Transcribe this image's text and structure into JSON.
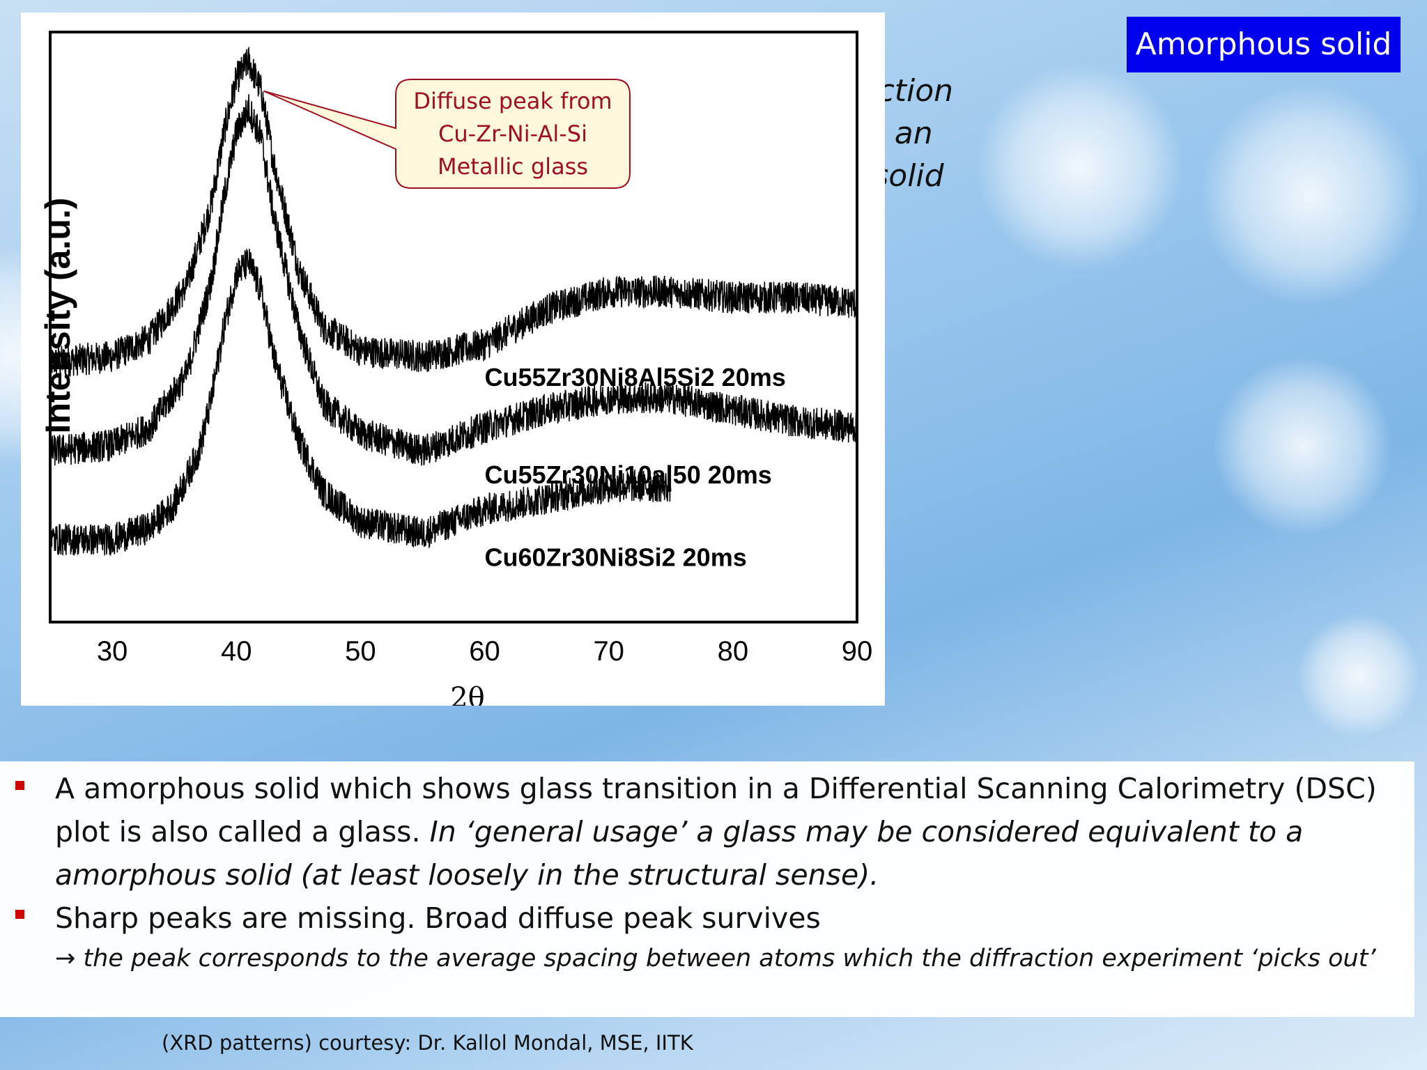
{
  "slide": {
    "title": "Amorphous solid",
    "caption_lines": [
      "Actual diffraction",
      "pattern from an",
      "amorphous solid"
    ],
    "bullets": [
      {
        "text": "A amorphous solid which shows glass transition in a Differential Scanning Calorimetry (DSC) plot is also called a glass. ",
        "italic_text": "In ‘general usage’ a glass may be considered equivalent to a amorphous solid (at least loosely in the structural sense)."
      },
      {
        "text": "Sharp peaks are missing. Broad diffuse peak survives",
        "sub_text": "→ the peak corresponds to the average spacing between atoms which the diffraction experiment ‘picks out’"
      }
    ],
    "credit": "(XRD patterns) courtesy: Dr. Kallol Mondal, MSE, IITK",
    "colors": {
      "title_bg": "#0000ee",
      "bullet": "#d00000",
      "callout_text": "#a01020",
      "callout_fill": "#fff8dc"
    }
  },
  "chart_data": {
    "type": "line",
    "xlabel": "2θ",
    "ylabel": "Intensity (a.u.)",
    "xlim": [
      25,
      90
    ],
    "ylim": [
      0,
      10
    ],
    "xticks": [
      30,
      40,
      50,
      60,
      70,
      80,
      90
    ],
    "grid": false,
    "callout": "Diffuse peak from Cu-Zr-Ni-Al-Si Metallic glass",
    "callout_lines": [
      "Diffuse peak from",
      "Cu-Zr-Ni-Al-Si",
      "Metallic glass"
    ],
    "series": [
      {
        "name": "Cu55Zr30Ni8Al5Si2 20ms",
        "x": [
          25,
          30,
          33,
          36,
          38,
          39,
          40,
          41,
          42,
          43,
          45,
          47,
          50,
          55,
          60,
          65,
          70,
          75,
          80,
          85,
          90
        ],
        "y": [
          4.4,
          4.5,
          4.8,
          5.7,
          7.1,
          8.3,
          9.2,
          9.5,
          9.0,
          7.8,
          6.0,
          5.0,
          4.6,
          4.5,
          4.7,
          5.3,
          5.6,
          5.6,
          5.5,
          5.5,
          5.4
        ]
      },
      {
        "name": "Cu55Zr30Ni10al50 20ms",
        "x": [
          25,
          30,
          33,
          36,
          38,
          39,
          40,
          41,
          42,
          43,
          45,
          47,
          50,
          55,
          60,
          65,
          70,
          75,
          80,
          85,
          90
        ],
        "y": [
          2.9,
          3.0,
          3.3,
          4.2,
          5.8,
          7.2,
          8.3,
          8.7,
          8.2,
          6.9,
          5.0,
          3.7,
          3.2,
          2.9,
          3.3,
          3.6,
          3.8,
          3.8,
          3.6,
          3.4,
          3.3
        ]
      },
      {
        "name": "Cu60Zr30Ni8Si2 20ms",
        "x": [
          25,
          30,
          33,
          35,
          37,
          38,
          39,
          40,
          41,
          42,
          43,
          45,
          47,
          50,
          55,
          60,
          65,
          70,
          75
        ],
        "y": [
          1.4,
          1.4,
          1.6,
          2.0,
          2.9,
          3.8,
          5.0,
          5.9,
          6.1,
          5.6,
          4.5,
          3.1,
          2.2,
          1.7,
          1.5,
          1.9,
          2.1,
          2.3,
          2.3
        ]
      }
    ]
  }
}
